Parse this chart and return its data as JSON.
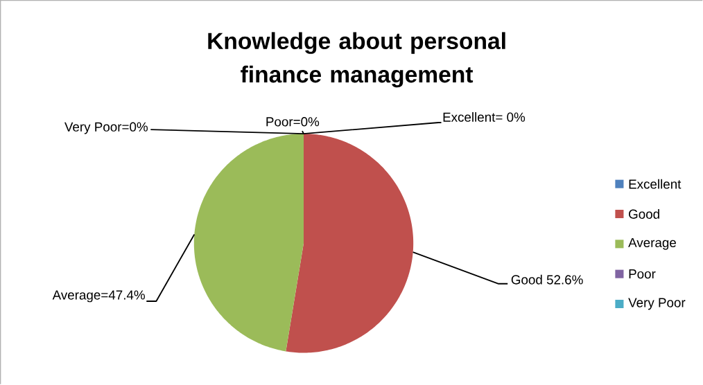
{
  "chart_data": {
    "type": "pie",
    "title": "Knowledge about personal finance management",
    "categories": [
      "Excellent",
      "Good",
      "Average",
      "Poor",
      "Very Poor"
    ],
    "values": [
      0,
      52.6,
      47.4,
      0,
      0
    ],
    "colors": [
      "#4f81bd",
      "#c0504d",
      "#9bbb59",
      "#8064a2",
      "#4bacc6"
    ],
    "value_labels": [
      "Excellent= 0%",
      "Good 52.6%",
      "Average=47.4%",
      "Poor=0%",
      "Very Poor=0%"
    ],
    "legend": "right"
  }
}
